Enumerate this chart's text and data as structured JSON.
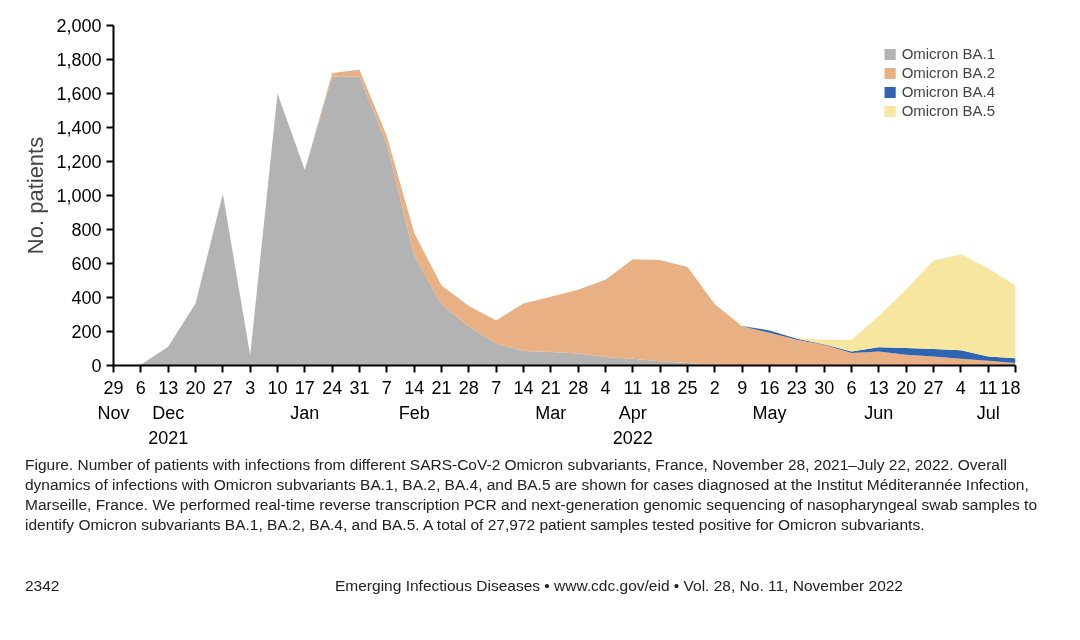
{
  "chart_data": {
    "type": "area",
    "stacked": true,
    "ylabel": "No. patients",
    "x": [
      "2021-11-29",
      "2021-12-06",
      "2021-12-13",
      "2021-12-20",
      "2021-12-27",
      "2022-01-03",
      "2022-01-10",
      "2022-01-17",
      "2022-01-24",
      "2022-01-31",
      "2022-02-07",
      "2022-02-14",
      "2022-02-21",
      "2022-02-28",
      "2022-03-07",
      "2022-03-14",
      "2022-03-21",
      "2022-03-28",
      "2022-04-04",
      "2022-04-11",
      "2022-04-18",
      "2022-04-25",
      "2022-05-02",
      "2022-05-09",
      "2022-05-16",
      "2022-05-23",
      "2022-05-30",
      "2022-06-06",
      "2022-06-13",
      "2022-06-20",
      "2022-06-27",
      "2022-07-04",
      "2022-07-11",
      "2022-07-18"
    ],
    "series": [
      {
        "name": "Omicron BA.1",
        "color": "#b3b3b3",
        "values": [
          0,
          5,
          110,
          365,
          1010,
          60,
          1600,
          1150,
          1700,
          1700,
          1300,
          650,
          360,
          230,
          130,
          85,
          80,
          70,
          50,
          40,
          25,
          15,
          5,
          0,
          0,
          0,
          0,
          0,
          0,
          0,
          0,
          0,
          0,
          0
        ]
      },
      {
        "name": "Omicron BA.2",
        "color": "#e9b084",
        "values": [
          0,
          0,
          0,
          0,
          0,
          0,
          0,
          0,
          20,
          40,
          50,
          130,
          110,
          120,
          135,
          280,
          325,
          375,
          455,
          585,
          595,
          565,
          355,
          231,
          192,
          152,
          122,
          73,
          83,
          63,
          53,
          40,
          28,
          14
        ]
      },
      {
        "name": "Omicron BA.4",
        "color": "#2e64b0",
        "values": [
          null,
          null,
          null,
          null,
          null,
          null,
          null,
          null,
          null,
          null,
          null,
          null,
          null,
          null,
          null,
          null,
          null,
          null,
          null,
          null,
          null,
          null,
          null,
          2,
          14,
          5,
          3,
          10,
          24,
          40,
          44,
          49,
          25,
          29
        ]
      },
      {
        "name": "Omicron BA.5",
        "color": "#f7e6a0",
        "values": [
          null,
          null,
          null,
          null,
          null,
          null,
          null,
          null,
          null,
          null,
          null,
          null,
          null,
          null,
          null,
          null,
          null,
          null,
          null,
          null,
          null,
          null,
          null,
          null,
          null,
          5,
          27,
          69,
          184,
          346,
          520,
          566,
          519,
          426
        ]
      }
    ],
    "xlim": [
      "2021-11-29",
      "2022-07-18"
    ],
    "xticks": [
      {
        "value": "2021-11-29",
        "label": "29\nNov"
      },
      {
        "value": "2021-12-06",
        "label": "6"
      },
      {
        "value": "2021-12-13",
        "label": "13\nDec\n2021"
      },
      {
        "value": "2021-12-20",
        "label": "20"
      },
      {
        "value": "2021-12-27",
        "label": "27"
      },
      {
        "value": "2022-01-03",
        "label": "3"
      },
      {
        "value": "2022-01-10",
        "label": "10"
      },
      {
        "value": "2022-01-17",
        "label": "17\nJan"
      },
      {
        "value": "2022-01-24",
        "label": "24"
      },
      {
        "value": "2022-01-31",
        "label": "31"
      },
      {
        "value": "2022-02-07",
        "label": "7"
      },
      {
        "value": "2022-02-14",
        "label": "14\nFeb"
      },
      {
        "value": "2022-02-21",
        "label": "21"
      },
      {
        "value": "2022-02-28",
        "label": "28"
      },
      {
        "value": "2022-03-07",
        "label": "7"
      },
      {
        "value": "2022-03-14",
        "label": "14"
      },
      {
        "value": "2022-03-21",
        "label": "21\nMar"
      },
      {
        "value": "2022-03-28",
        "label": "28"
      },
      {
        "value": "2022-04-04",
        "label": "4"
      },
      {
        "value": "2022-04-11",
        "label": "11\nApr\n2022"
      },
      {
        "value": "2022-04-18",
        "label": "18"
      },
      {
        "value": "2022-04-25",
        "label": "25"
      },
      {
        "value": "2022-05-02",
        "label": "2"
      },
      {
        "value": "2022-05-09",
        "label": "9"
      },
      {
        "value": "2022-05-16",
        "label": "16\nMay"
      },
      {
        "value": "2022-05-23",
        "label": "23"
      },
      {
        "value": "2022-05-30",
        "label": "30"
      },
      {
        "value": "2022-06-06",
        "label": "6"
      },
      {
        "value": "2022-06-13",
        "label": "13\nJun"
      },
      {
        "value": "2022-06-20",
        "label": "20"
      },
      {
        "value": "2022-06-27",
        "label": "27"
      },
      {
        "value": "2022-07-04",
        "label": "4"
      },
      {
        "value": "2022-07-11",
        "label": "11\nJul"
      },
      {
        "value": "2022-07-18",
        "label": "18"
      }
    ],
    "ylim": [
      0,
      2000
    ],
    "yticks": [
      0,
      200,
      400,
      600,
      800,
      {
        "value": 1000,
        "label": "1,000"
      },
      {
        "value": 1200,
        "label": "1,200"
      },
      {
        "value": 1400,
        "label": "1,400"
      },
      {
        "value": 1600,
        "label": "1,600"
      },
      {
        "value": 1800,
        "label": "1,800"
      },
      {
        "value": 2000,
        "label": "2,000"
      }
    ],
    "grid": false,
    "legend": "top right",
    "annotations": [
      "Figure. Number of patients with infections from different SARS-CoV-2 Omicron subvariants, France, November 28, 2021–July 22, 2022. Overall dynamics of infections with Omicron subvariants BA.1, BA.2, BA.4, and BA.5 are shown for cases diagnosed at the Institut Méditerannée Infection, Marseille, France. We performed real-time reverse transcription PCR and next-generation genomic sequencing of nasopharyngeal swab samples to identify Omicron subvariants BA.1, BA.2, BA.4, and BA.5. A total of 27,972 patient samples tested positive for Omicron subvariants.",
      "2342",
      "Emerging Infectious Diseases • www.cdc.gov/eid • Vol. 28, No. 11, November 2022"
    ]
  }
}
